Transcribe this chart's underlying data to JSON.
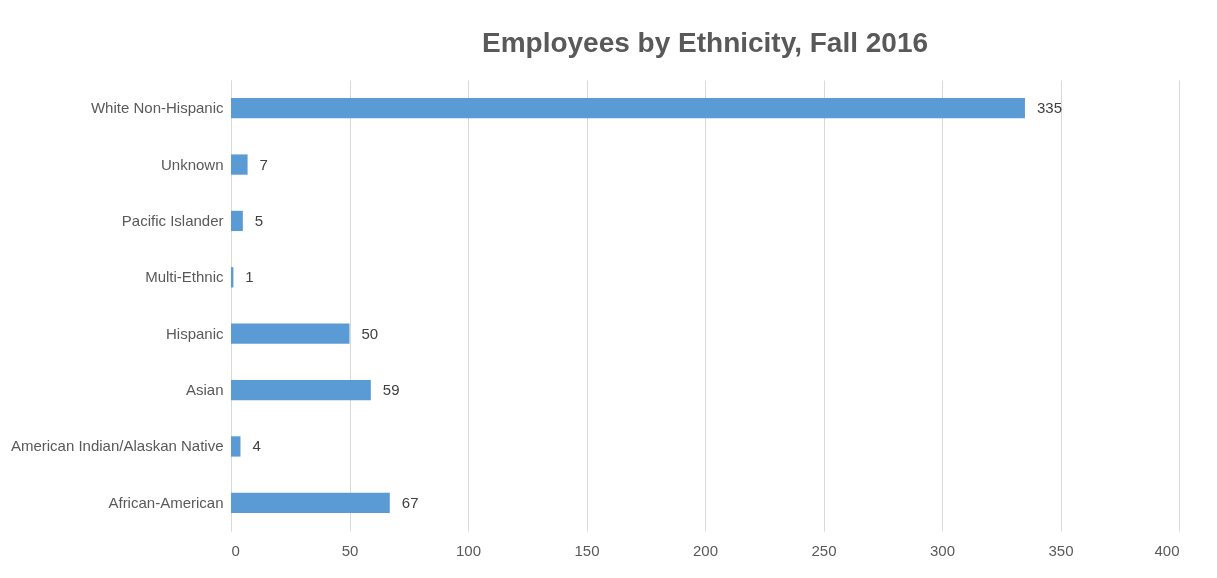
{
  "chart_data": {
    "type": "bar",
    "orientation": "horizontal",
    "title": "Employees by Ethnicity, Fall 2016",
    "categories": [
      "White Non-Hispanic",
      "Unknown",
      "Pacific Islander",
      "Multi-Ethnic",
      "Hispanic",
      "Asian",
      "American Indian/Alaskan Native",
      "African-American"
    ],
    "values": [
      335,
      7,
      5,
      1,
      50,
      59,
      4,
      67
    ],
    "color": "#5b9bd5",
    "xlim": [
      0,
      400
    ],
    "xticks": [
      0,
      50,
      100,
      150,
      200,
      250,
      300,
      350,
      400
    ],
    "grid": "x",
    "data_labels": true
  }
}
